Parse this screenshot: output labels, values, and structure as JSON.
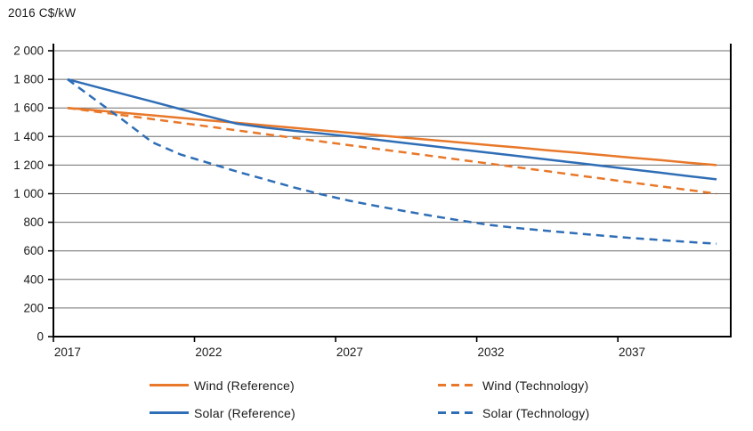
{
  "chart_data": {
    "type": "line",
    "title": "",
    "ylabel": "2016 C$/kW",
    "xlabel": "",
    "x": [
      2017,
      2018,
      2019,
      2020,
      2021,
      2022,
      2023,
      2024,
      2025,
      2026,
      2027,
      2028,
      2029,
      2030,
      2031,
      2032,
      2033,
      2034,
      2035,
      2036,
      2037,
      2038,
      2039,
      2040
    ],
    "x_tick_labels": [
      "2017",
      "2022",
      "2027",
      "2032",
      "2037"
    ],
    "x_tick_indices": [
      0,
      5,
      10,
      15,
      20
    ],
    "ylim": [
      0,
      2000
    ],
    "y_ticks": [
      0,
      200,
      400,
      600,
      800,
      1000,
      1200,
      1400,
      1600,
      1800,
      2000
    ],
    "y_tick_labels": [
      "0",
      "200",
      "400",
      "600",
      "800",
      "1 000",
      "1 200",
      "1 400",
      "1 600",
      "1 800",
      "2 000"
    ],
    "grid": "horizontal",
    "legend_position": "bottom",
    "series": [
      {
        "name": "Wind (Reference)",
        "color": "#E8782A",
        "style": "solid",
        "values": [
          1600,
          1583,
          1565,
          1548,
          1530,
          1513,
          1496,
          1478,
          1461,
          1443,
          1426,
          1409,
          1391,
          1374,
          1357,
          1339,
          1322,
          1304,
          1287,
          1270,
          1252,
          1235,
          1217,
          1200
        ]
      },
      {
        "name": "Wind (Technology)",
        "color": "#E8782A",
        "style": "dashed",
        "values": [
          1600,
          1574,
          1548,
          1522,
          1496,
          1470,
          1443,
          1417,
          1391,
          1365,
          1339,
          1313,
          1287,
          1261,
          1235,
          1209,
          1183,
          1157,
          1130,
          1104,
          1078,
          1052,
          1026,
          1000
        ]
      },
      {
        "name": "Solar (Reference)",
        "color": "#2F6EB6",
        "style": "solid",
        "values": [
          1800,
          1748,
          1696,
          1644,
          1592,
          1540,
          1490,
          1462,
          1441,
          1421,
          1400,
          1377,
          1354,
          1331,
          1308,
          1285,
          1262,
          1239,
          1216,
          1193,
          1170,
          1147,
          1123,
          1100
        ]
      },
      {
        "name": "Solar (Technology)",
        "color": "#2F6EB6",
        "style": "dashed",
        "values": [
          1800,
          1655,
          1510,
          1360,
          1275,
          1215,
          1155,
          1100,
          1045,
          995,
          950,
          912,
          876,
          842,
          810,
          780,
          758,
          740,
          723,
          706,
          690,
          676,
          662,
          650
        ]
      }
    ],
    "colors": {
      "axis": "#000000",
      "gridline": "#6e6e6e",
      "text": "#1a1a1a"
    }
  }
}
